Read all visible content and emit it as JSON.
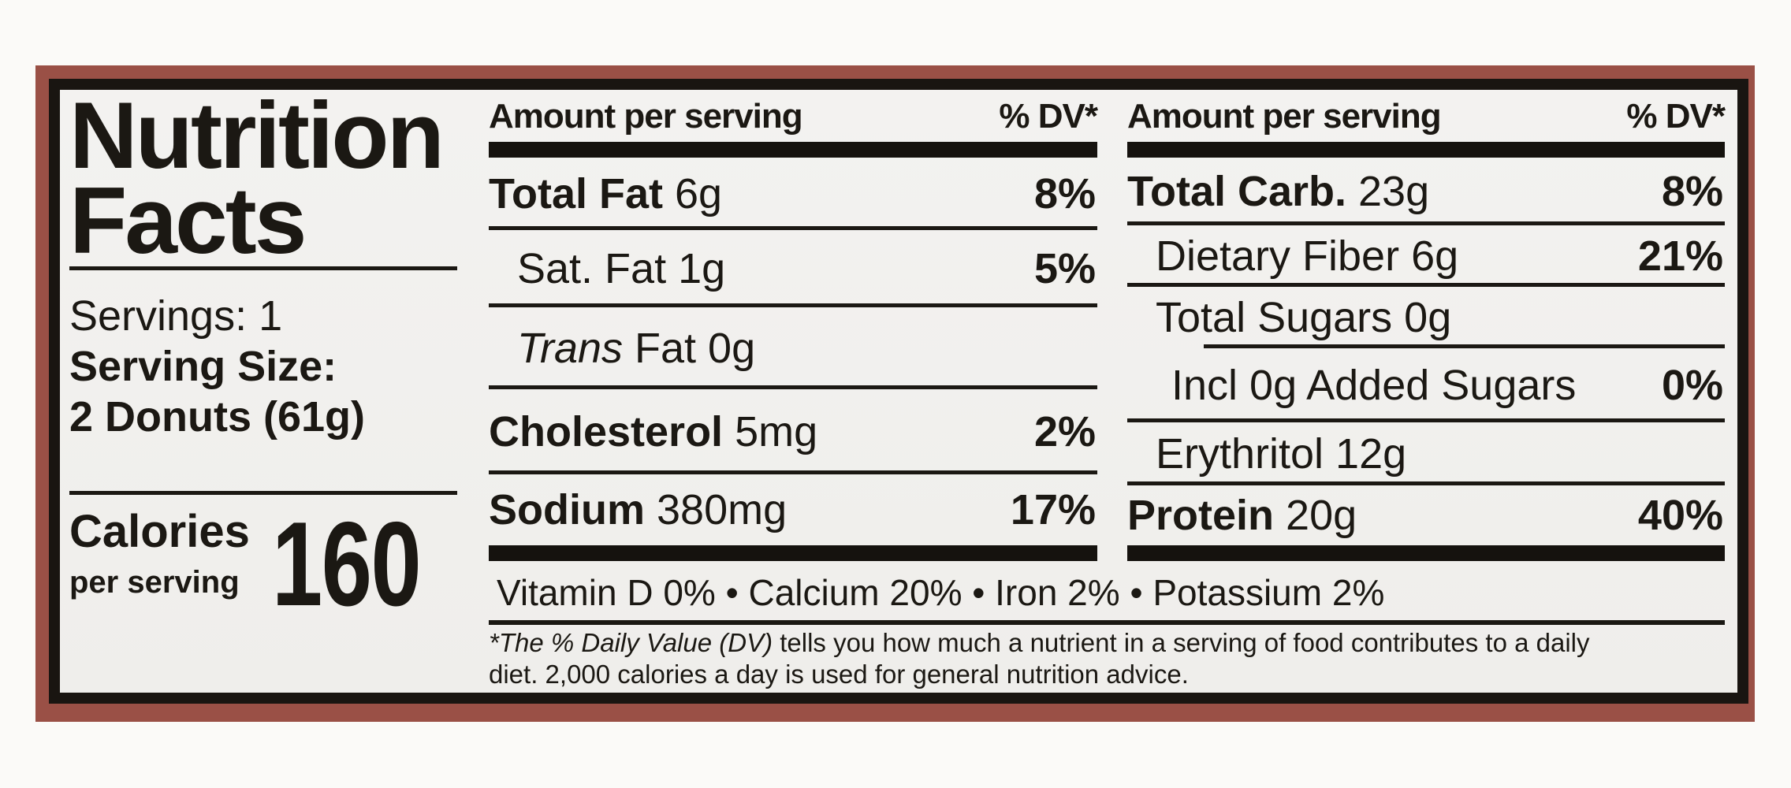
{
  "colors": {
    "frame": "#9a5046",
    "ink": "#1b1813",
    "label_background": "#f1f0ee",
    "page_background": "#fbfaf8"
  },
  "label": {
    "title_line1": "Nutrition",
    "title_line2": "Facts",
    "servings": "Servings: 1",
    "serving_size_label": "Serving Size:",
    "serving_size_value": "2 Donuts (61g)",
    "calories_label": "Calories",
    "calories_sublabel": "per serving",
    "calories_value": "160",
    "column_header": {
      "amount": "Amount per serving",
      "dv": "% DV*"
    },
    "middle_rows": [
      {
        "b": "Total Fat",
        "r": " 6g",
        "p": "8%"
      },
      {
        "r": "Sat. Fat 1g",
        "p": "5%"
      },
      {
        "i": "Trans",
        "r": " Fat 0g",
        "p": ""
      },
      {
        "b": "Cholesterol",
        "r": " 5mg",
        "p": "2%"
      },
      {
        "b": "Sodium",
        "r": " 380mg",
        "p": "17%"
      }
    ],
    "right_rows": [
      {
        "b": "Total Carb.",
        "r": " 23g",
        "p": "8%"
      },
      {
        "r": "Dietary Fiber 6g",
        "p": "21%"
      },
      {
        "r": "Total Sugars 0g",
        "p": ""
      },
      {
        "r": "Incl 0g Added Sugars",
        "p": "0%"
      },
      {
        "r": "Erythritol 12g",
        "p": ""
      },
      {
        "b": "Protein",
        "r": " 20g",
        "p": "40%"
      }
    ],
    "micronutrients": "Vitamin D 0% • Calcium 20% • Iron 2% • Potassium 2%",
    "footnote": {
      "prefix": "*The % Daily Value (DV)",
      "line1_rest": " tells you how much a nutrient in a serving of food contributes to a daily",
      "line2": "diet. 2,000 calories a day is used for general nutrition advice."
    }
  }
}
